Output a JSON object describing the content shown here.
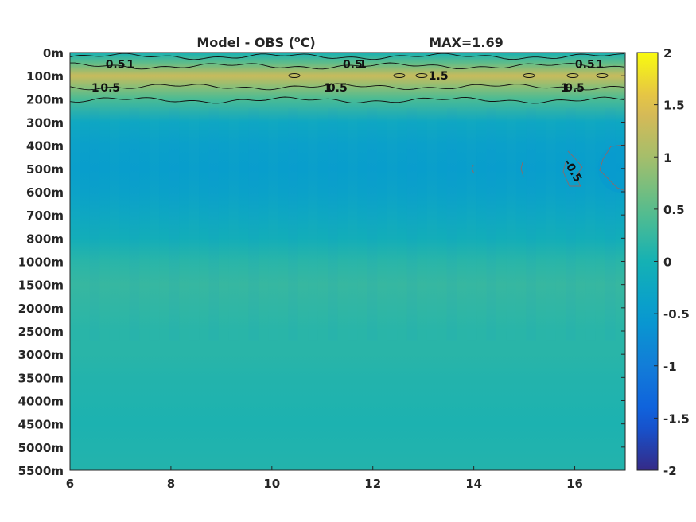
{
  "chart_data": {
    "type": "heatmap",
    "title": "Model - OBS (",
    "title_unit_sup": "o",
    "title_unit_tail": "C)",
    "max_label": "MAX=1.69",
    "xlabel": "",
    "ylabel": "",
    "xlim": [
      6,
      17
    ],
    "x_ticks": [
      6,
      8,
      10,
      12,
      14,
      16
    ],
    "y_ticks": [
      "0m",
      "100m",
      "200m",
      "300m",
      "400m",
      "500m",
      "600m",
      "700m",
      "800m",
      "1000m",
      "1500m",
      "2000m",
      "2500m",
      "3000m",
      "3500m",
      "4000m",
      "4500m",
      "5000m",
      "5500m"
    ],
    "depth_profile": [
      {
        "depth": "0m",
        "value": 0.0
      },
      {
        "depth": "0m-100m",
        "value": 0.6
      },
      {
        "depth": "100m",
        "value": 1.3
      },
      {
        "depth": "100m-200m",
        "value": 0.8
      },
      {
        "depth": "200m",
        "value": 0.4
      },
      {
        "depth": "300m",
        "value": -0.25
      },
      {
        "depth": "400m",
        "value": -0.4
      },
      {
        "depth": "500m",
        "value": -0.45
      },
      {
        "depth": "600m",
        "value": -0.38
      },
      {
        "depth": "700m",
        "value": -0.25
      },
      {
        "depth": "800m",
        "value": -0.1
      },
      {
        "depth": "1000m",
        "value": 0.15
      },
      {
        "depth": "1500m",
        "value": 0.25
      },
      {
        "depth": "2000m",
        "value": 0.2
      },
      {
        "depth": "2500m",
        "value": 0.15
      },
      {
        "depth": "3000m",
        "value": 0.15
      },
      {
        "depth": "3500m",
        "value": 0.1
      },
      {
        "depth": "4000m",
        "value": 0.08
      },
      {
        "depth": "4500m",
        "value": 0.05
      },
      {
        "depth": "5000m",
        "value": 0.08
      },
      {
        "depth": "5500m",
        "value": 0.1
      }
    ],
    "contour_labels": [
      {
        "text": "0.5",
        "x": 6.9,
        "depth": "0m-100m"
      },
      {
        "text": "1",
        "x": 7.2,
        "depth": "0m-100m"
      },
      {
        "text": "1",
        "x": 6.5,
        "depth": "100m-200m"
      },
      {
        "text": "0.5",
        "x": 6.8,
        "depth": "100m-200m"
      },
      {
        "text": "0.5",
        "x": 11.6,
        "depth": "0m-100m"
      },
      {
        "text": "1",
        "x": 11.8,
        "depth": "0m-100m"
      },
      {
        "text": "1",
        "x": 11.1,
        "depth": "100m-200m"
      },
      {
        "text": "0.5",
        "x": 11.3,
        "depth": "100m-200m"
      },
      {
        "text": "1.5",
        "x": 13.3,
        "depth": "100m"
      },
      {
        "text": "0.5",
        "x": 16.2,
        "depth": "0m-100m"
      },
      {
        "text": "1",
        "x": 16.5,
        "depth": "0m-100m"
      },
      {
        "text": "1",
        "x": 15.8,
        "depth": "100m-200m"
      },
      {
        "text": "0.5",
        "x": 16.0,
        "depth": "100m-200m"
      },
      {
        "text": "-0.5",
        "x": 15.9,
        "depth": "500m"
      }
    ],
    "colorbar": {
      "range": [
        -2,
        2
      ],
      "ticks": [
        "2",
        "1.5",
        "1",
        "0.5",
        "0",
        "-0.5",
        "-1",
        "-1.5",
        "-2"
      ]
    },
    "colormap": "parula",
    "grid": false,
    "legend": "colorbar-right"
  }
}
